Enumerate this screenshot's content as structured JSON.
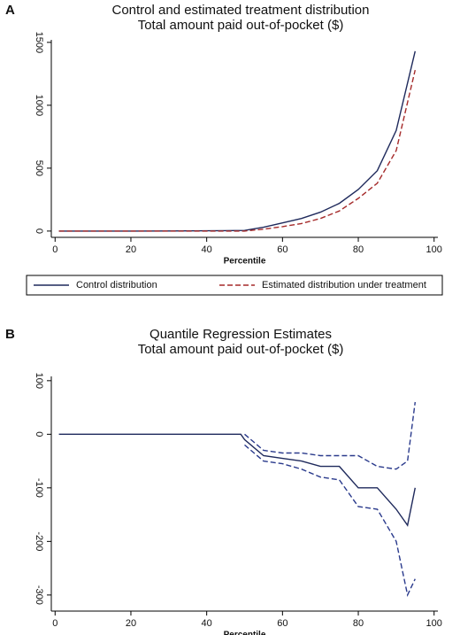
{
  "chart_data": [
    {
      "type": "line",
      "panel_label": "A",
      "title": "Control and estimated treatment distribution",
      "subtitle": "Total amount paid out-of-pocket ($)",
      "x_label": "Percentile",
      "legend": "bottom",
      "x": [
        1,
        10,
        20,
        30,
        40,
        50,
        55,
        60,
        65,
        70,
        75,
        80,
        85,
        90,
        95
      ],
      "series": [
        {
          "name": "Control distribution",
          "color": "#1f2a5c",
          "dash": false,
          "values": [
            0,
            0,
            0,
            1,
            2,
            5,
            30,
            65,
            100,
            150,
            220,
            330,
            480,
            800,
            1430
          ]
        },
        {
          "name": "Estimated distribution under treatment",
          "color": "#a52a2a",
          "dash": true,
          "values": [
            0,
            0,
            0,
            0,
            0,
            0,
            15,
            35,
            60,
            100,
            160,
            260,
            380,
            640,
            1280
          ]
        }
      ],
      "xlim": [
        -1,
        101
      ],
      "xticks": [
        0,
        20,
        40,
        60,
        80,
        100
      ],
      "ylim": [
        -50,
        1520
      ],
      "yticks": [
        0,
        500,
        1000,
        1500
      ]
    },
    {
      "type": "line",
      "panel_label": "B",
      "title": "Quantile Regression Estimates",
      "subtitle": "Total amount paid out-of-pocket ($)",
      "x_label": "Percentile",
      "x": [
        1,
        49,
        50,
        55,
        60,
        65,
        70,
        75,
        80,
        85,
        90,
        93,
        95
      ],
      "series": [
        {
          "color": "#1f2a5c",
          "dash": false,
          "values": [
            0,
            0,
            -10,
            -40,
            -45,
            -50,
            -60,
            -60,
            -100,
            -100,
            -140,
            -170,
            -100
          ]
        },
        {
          "color": "#2a3a8c",
          "dash": true,
          "values": [
            null,
            null,
            0,
            -30,
            -35,
            -35,
            -40,
            -40,
            -40,
            -60,
            -65,
            -50,
            60
          ]
        },
        {
          "color": "#2a3a8c",
          "dash": true,
          "values": [
            null,
            null,
            -20,
            -50,
            -55,
            -65,
            -80,
            -85,
            -135,
            -140,
            -200,
            -300,
            -270
          ]
        }
      ],
      "xlim": [
        -1,
        101
      ],
      "xticks": [
        0,
        20,
        40,
        60,
        80,
        100
      ],
      "ylim": [
        -330,
        108
      ],
      "yticks": [
        -300,
        -200,
        -100,
        0,
        100
      ]
    }
  ]
}
